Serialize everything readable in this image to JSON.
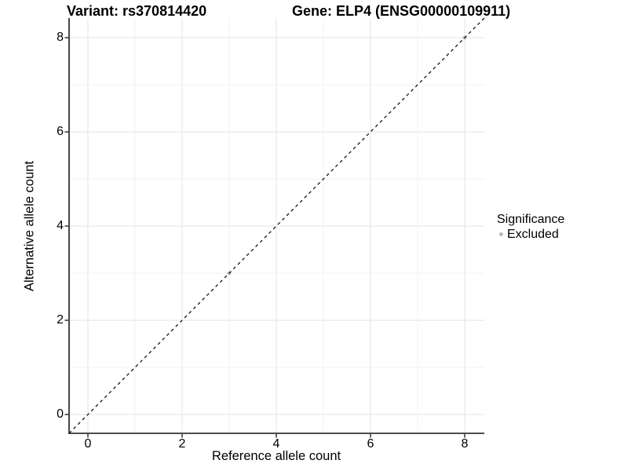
{
  "figure": {
    "title_left": "Variant: rs370814420",
    "title_right": "Gene: ELP4 (ENSG00000109911)"
  },
  "axes": {
    "x": {
      "label": "Reference allele count",
      "tick_labels": [
        "0",
        "2",
        "4",
        "6",
        "8"
      ]
    },
    "y": {
      "label": "Alternative allele count",
      "tick_labels": [
        "0",
        "2",
        "4",
        "6",
        "8"
      ]
    }
  },
  "legend": {
    "title": "Significance",
    "items": [
      {
        "label": "Excluded",
        "color": "#b8b8b8",
        "marker": "circle-icon"
      }
    ]
  },
  "colors": {
    "background": "#ffffff",
    "grid_major": "#e3e3e3",
    "grid_minor": "#f0f0f0",
    "axis_line": "#333333",
    "reference_line": "#000000",
    "point": "#b8b8b8",
    "text": "#000000"
  },
  "chart_data": {
    "type": "scatter",
    "title": "Variant: rs370814420 | Gene: ELP4 (ENSG00000109911)",
    "xlabel": "Reference allele count",
    "ylabel": "Alternative allele count",
    "xlim": [
      -0.4,
      8.4
    ],
    "ylim": [
      -0.4,
      8.4
    ],
    "x_ticks": [
      0,
      2,
      4,
      6,
      8
    ],
    "y_ticks": [
      0,
      2,
      4,
      6,
      8
    ],
    "grid": "major gridlines at even ticks, minor gridlines at odd values, light gray on white panel",
    "legend_position": "right-middle",
    "series": [
      {
        "name": "Excluded",
        "color": "#b8b8b8",
        "points": [
          [
            3,
            3
          ],
          [
            8,
            8
          ]
        ]
      }
    ],
    "reference_line": {
      "style": "dashed",
      "slope": 1,
      "intercept": 0,
      "color": "#000000"
    }
  }
}
